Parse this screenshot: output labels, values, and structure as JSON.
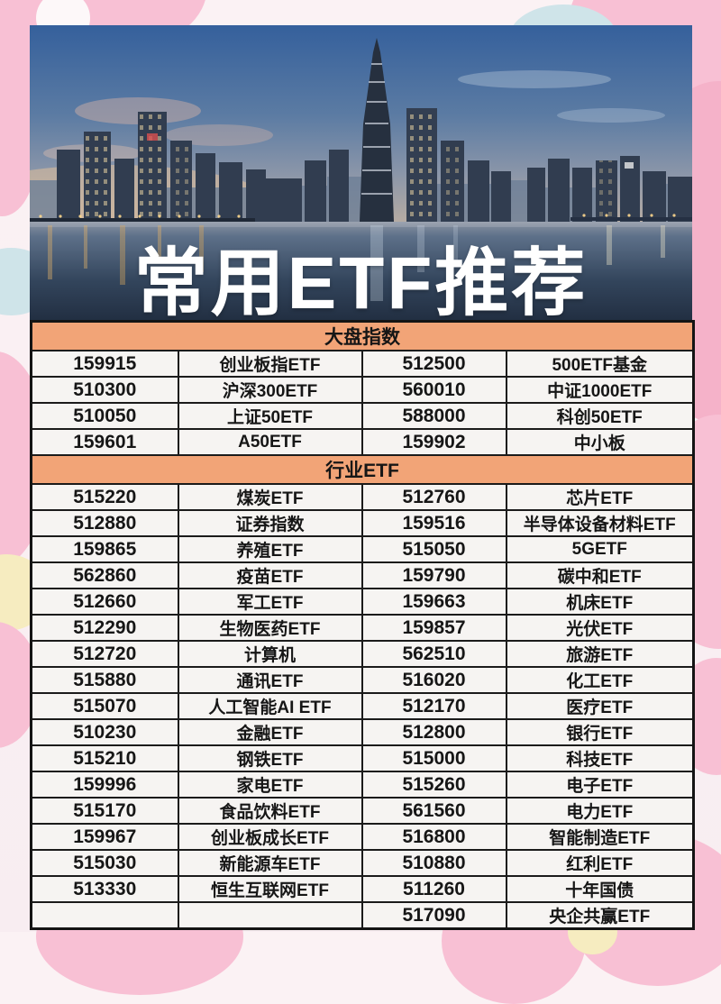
{
  "poster": {
    "title": "常用ETF推荐"
  },
  "colors": {
    "section_header_bg": "#F2A477",
    "table_border": "#1B1B1B",
    "cell_bg": "#F6F4F2",
    "background_base": "#FBF2F4",
    "background_pink": "#F8C0D4",
    "background_blue_petal": "#CFE4E9",
    "background_yellow_petal": "#F6ECC0",
    "sky_blue": "#3C67A2",
    "title_color": "#FFFFFF"
  },
  "table": {
    "sections": [
      {
        "header": "大盘指数",
        "rows": [
          [
            "159915",
            "创业板指ETF",
            "512500",
            "500ETF基金"
          ],
          [
            "510300",
            "沪深300ETF",
            "560010",
            "中证1000ETF"
          ],
          [
            "510050",
            "上证50ETF",
            "588000",
            "科创50ETF"
          ],
          [
            "159601",
            "A50ETF",
            "159902",
            "中小板"
          ]
        ]
      },
      {
        "header": "行业ETF",
        "rows": [
          [
            "515220",
            "煤炭ETF",
            "512760",
            "芯片ETF"
          ],
          [
            "512880",
            "证券指数",
            "159516",
            "半导体设备材料ETF"
          ],
          [
            "159865",
            "养殖ETF",
            "515050",
            "5GETF"
          ],
          [
            "562860",
            "疫苗ETF",
            "159790",
            "碳中和ETF"
          ],
          [
            "512660",
            "军工ETF",
            "159663",
            "机床ETF"
          ],
          [
            "512290",
            "生物医药ETF",
            "159857",
            "光伏ETF"
          ],
          [
            "512720",
            "计算机",
            "562510",
            "旅游ETF"
          ],
          [
            "515880",
            "通讯ETF",
            "516020",
            "化工ETF"
          ],
          [
            "515070",
            "人工智能AI ETF",
            "512170",
            "医疗ETF"
          ],
          [
            "510230",
            "金融ETF",
            "512800",
            "银行ETF"
          ],
          [
            "515210",
            "钢铁ETF",
            "515000",
            "科技ETF"
          ],
          [
            "159996",
            "家电ETF",
            "515260",
            "电子ETF"
          ],
          [
            "515170",
            "食品饮料ETF",
            "561560",
            "电力ETF"
          ],
          [
            "159967",
            "创业板成长ETF",
            "516800",
            "智能制造ETF"
          ],
          [
            "515030",
            "新能源车ETF",
            "510880",
            "红利ETF"
          ],
          [
            "513330",
            "恒生互联网ETF",
            "511260",
            "十年国债"
          ],
          [
            "",
            "",
            "517090",
            "央企共赢ETF"
          ]
        ]
      }
    ]
  }
}
